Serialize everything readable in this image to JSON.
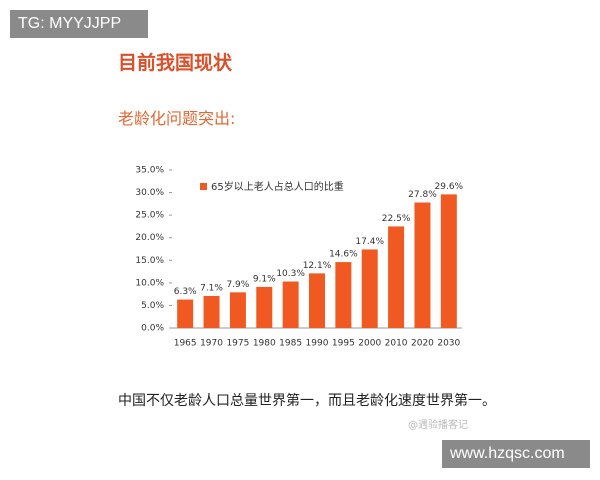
{
  "watermark_top": "TG: MYYJJPP",
  "header": {
    "title": "目前我国现状",
    "subtitle": "老龄化问题突出:"
  },
  "chart_data": {
    "type": "bar",
    "categories": [
      "1965",
      "1970",
      "1975",
      "1980",
      "1985",
      "1990",
      "1995",
      "2000",
      "2010",
      "2020",
      "2030"
    ],
    "series": [
      {
        "name": "65岁以上老人占总人口的比重",
        "color": "#f05a22",
        "values": [
          6.3,
          7.1,
          7.9,
          9.1,
          10.3,
          12.1,
          14.6,
          17.4,
          22.5,
          27.8,
          29.6
        ],
        "value_labels": [
          "6.3%",
          "7.1%",
          "7.9%",
          "9.1%",
          "10.3%",
          "12.1%",
          "14.6%",
          "17.4%",
          "22.5%",
          "27.8%",
          "29.6%"
        ]
      }
    ],
    "ylim": [
      0,
      35
    ],
    "yticks": [
      {
        "value": 0,
        "label": "0.0%"
      },
      {
        "value": 5,
        "label": "5.0%"
      },
      {
        "value": 10,
        "label": "10.0%"
      },
      {
        "value": 15,
        "label": "15.0%"
      },
      {
        "value": 20,
        "label": "20.0%"
      },
      {
        "value": 25,
        "label": "25.0%"
      },
      {
        "value": 30,
        "label": "30.0%"
      },
      {
        "value": 35,
        "label": "35.0%"
      }
    ],
    "legend": "top-left"
  },
  "paragraph": "中国不仅老龄人口总量世界第一，而且老龄化速度世界第一。",
  "watermark_caption": "@遇验播客记",
  "watermark_bottom": "www.hzqsc.com"
}
